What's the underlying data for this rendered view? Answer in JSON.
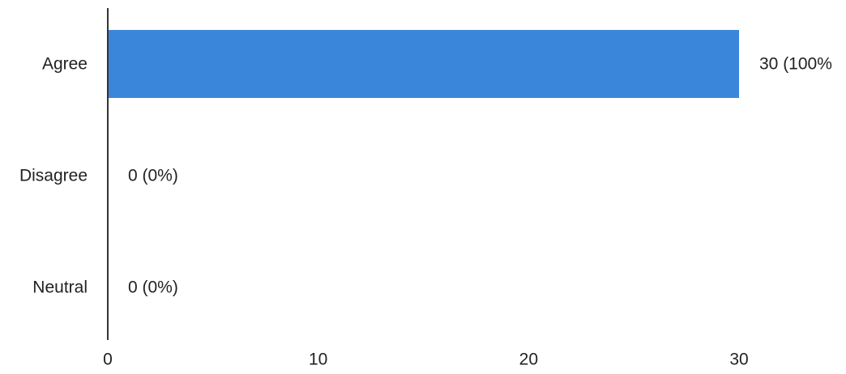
{
  "chart_data": {
    "type": "bar",
    "orientation": "horizontal",
    "categories": [
      "Agree",
      "Disagree",
      "Neutral"
    ],
    "values": [
      30,
      0,
      0
    ],
    "data_labels": [
      "30 (100%",
      "0 (0%)",
      "0 (0%)"
    ],
    "xticks": [
      "0",
      "10",
      "20",
      "30"
    ],
    "xlim": [
      0,
      30
    ],
    "title": "",
    "xlabel": "",
    "ylabel": "",
    "grid": false,
    "legend": "none",
    "bar_color": "#3A86DB",
    "axis_color": "#333333",
    "text_color": "#222222"
  }
}
